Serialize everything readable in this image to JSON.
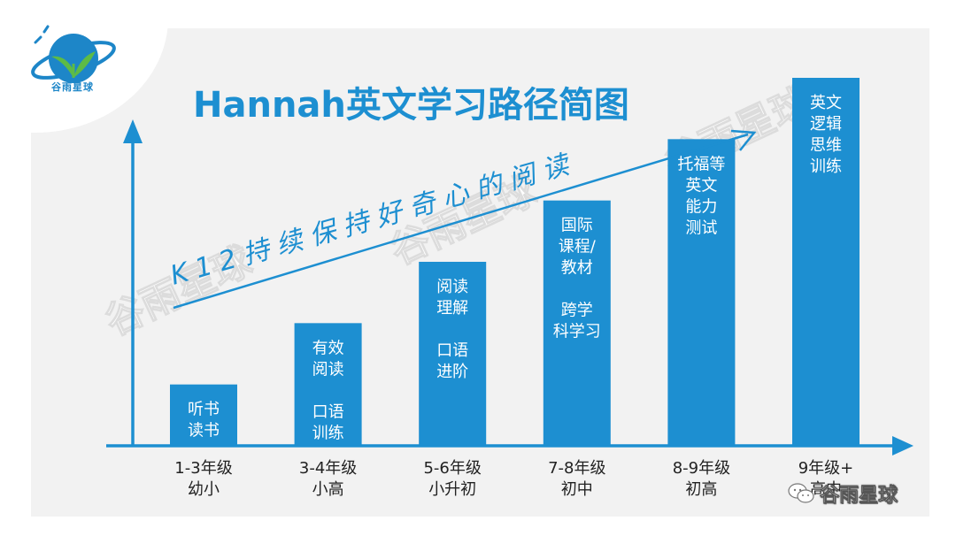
{
  "header": {
    "title": "Hannah英文学习路径简图",
    "logo_text": "谷雨星球",
    "footer_text": "谷雨星球",
    "watermark_text": "谷雨星球"
  },
  "colors": {
    "accent": "#1d8fd1",
    "bar": "#1d8fd1",
    "panel": "#f2f2f2",
    "logo_green": "#5dbb46"
  },
  "icons": [
    "planet-logo-icon",
    "wechat-icon",
    "axis-arrow-icon"
  ],
  "chart_data": {
    "type": "bar",
    "title": "Hannah英文学习路径简图",
    "categories": [
      "1-3年级\n幼小",
      "3-4年级\n小高",
      "5-6年级\n小升初",
      "7-8年级\n初中",
      "8-9年级\n初高",
      "9年级+\n高中"
    ],
    "values": [
      1,
      2,
      3,
      4,
      5,
      6
    ],
    "bar_labels": [
      [
        "听书",
        "读书"
      ],
      [
        "有效",
        "阅读",
        "",
        "口语",
        "训练"
      ],
      [
        "阅读",
        "理解",
        "",
        "口语",
        "进阶"
      ],
      [
        "国际",
        "课程/",
        "教材",
        "",
        "跨学",
        "科学习"
      ],
      [
        "托福等",
        "英文",
        "能力",
        "测试"
      ],
      [
        "英文",
        "逻辑",
        "思维",
        "训练"
      ]
    ],
    "trend_annotation": "K12持续保持好奇心的阅读",
    "xlabel": "",
    "ylabel": "",
    "ylim": [
      0,
      6
    ],
    "grid": false
  }
}
